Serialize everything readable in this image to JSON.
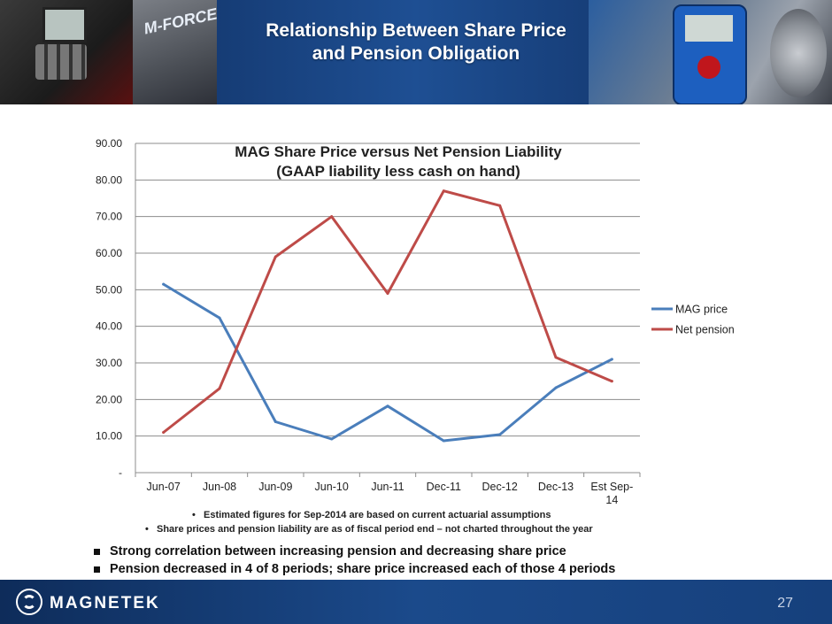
{
  "slide": {
    "title_line1": "Relationship Between Share Price",
    "title_line2": "and Pension Obligation",
    "banner_brand": "M-FORCE",
    "notes": [
      "Estimated figures for Sep-2014 are based on current actuarial assumptions",
      "Share prices and pension liability are as of fiscal period end – not charted throughout the year"
    ],
    "bullets": [
      "Strong correlation between increasing pension and decreasing share price",
      "Pension decreased in 4 of 8 periods; share price increased each of those 4 periods"
    ],
    "footer_logo": "MAGNETEK",
    "page_number": "27"
  },
  "chart_data": {
    "type": "line",
    "title": "MAG Share Price versus Net Pension Liability",
    "subtitle": "(GAAP liability less cash on hand)",
    "categories": [
      "Jun-07",
      "Jun-08",
      "Jun-09",
      "Jun-10",
      "Jun-11",
      "Dec-11",
      "Dec-12",
      "Dec-13",
      "Est Sep-14"
    ],
    "category_lines": [
      [
        "Jun-07"
      ],
      [
        "Jun-08"
      ],
      [
        "Jun-09"
      ],
      [
        "Jun-10"
      ],
      [
        "Jun-11"
      ],
      [
        "Dec-11"
      ],
      [
        "Dec-12"
      ],
      [
        "Dec-13"
      ],
      [
        "Est Sep-",
        "14"
      ]
    ],
    "series": [
      {
        "name": "MAG price",
        "color": "#4a7ebb",
        "values": [
          51.5,
          42.3,
          13.9,
          9.2,
          18.2,
          8.7,
          10.4,
          23.2,
          31.0
        ]
      },
      {
        "name": "Net pension",
        "color": "#be4b48",
        "values": [
          11.0,
          23.0,
          59.0,
          70.0,
          49.0,
          77.0,
          73.0,
          31.5,
          25.0
        ]
      }
    ],
    "yticks": [
      "-",
      "10.00",
      "20.00",
      "30.00",
      "40.00",
      "50.00",
      "60.00",
      "70.00",
      "80.00",
      "90.00"
    ],
    "ylim": [
      0,
      90
    ],
    "xlabel": "",
    "ylabel": "",
    "grid": true,
    "legend": "right"
  }
}
